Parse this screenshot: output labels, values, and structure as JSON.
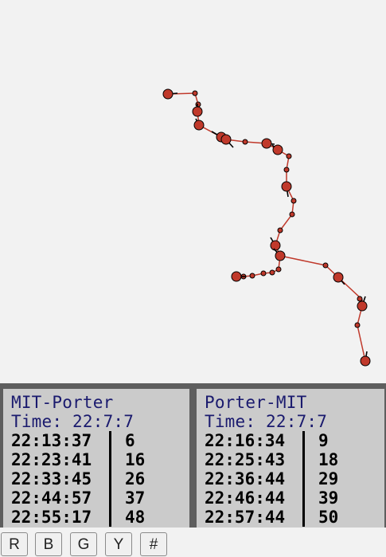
{
  "map": {
    "route_color": "#c0392b",
    "stop_color": "#c0392b",
    "marker_outline": "#000000"
  },
  "panels": [
    {
      "title": "MIT-Porter",
      "time": "Time: 22:7:7",
      "rows": [
        {
          "time": "22:13:37",
          "minutes": "6"
        },
        {
          "time": "22:23:41",
          "minutes": "16"
        },
        {
          "time": "22:33:45",
          "minutes": "26"
        },
        {
          "time": "22:44:57",
          "minutes": "37"
        },
        {
          "time": "22:55:17",
          "minutes": "48"
        }
      ]
    },
    {
      "title": "Porter-MIT",
      "time": "Time: 22:7:7",
      "rows": [
        {
          "time": "22:16:34",
          "minutes": "9"
        },
        {
          "time": "22:25:43",
          "minutes": "18"
        },
        {
          "time": "22:36:44",
          "minutes": "29"
        },
        {
          "time": "22:46:44",
          "minutes": "39"
        },
        {
          "time": "22:57:44",
          "minutes": "50"
        }
      ]
    }
  ],
  "buttons": {
    "r": "R",
    "b": "B",
    "g": "G",
    "y": "Y",
    "hash": "#"
  }
}
